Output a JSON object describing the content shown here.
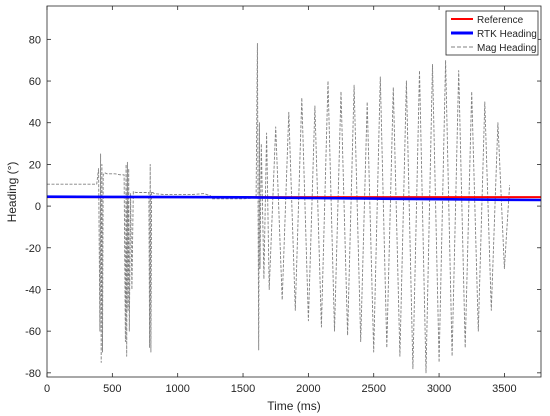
{
  "chart_data": {
    "type": "line",
    "title": "",
    "xlabel": "Time (ms)",
    "ylabel": "Heading (°)",
    "xlim": [
      0,
      3780
    ],
    "ylim": [
      -82,
      96
    ],
    "x_ticks": [
      0,
      500,
      1000,
      1500,
      2000,
      2500,
      3000,
      3500
    ],
    "y_ticks": [
      -80,
      -60,
      -40,
      -20,
      0,
      20,
      40,
      60,
      80
    ],
    "grid": false,
    "legend_position": "top-right",
    "series": [
      {
        "name": "Reference",
        "color": "#ff0000",
        "style": "solid",
        "x": [
          0,
          3780
        ],
        "y": [
          4.3,
          4.3
        ]
      },
      {
        "name": "RTK Heading",
        "color": "#0000ff",
        "style": "solid",
        "x": [
          0,
          500,
          1000,
          1500,
          2000,
          2500,
          3000,
          3500,
          3780
        ],
        "y": [
          4.5,
          4.4,
          4.3,
          4.2,
          3.9,
          3.6,
          3.3,
          3.0,
          2.9
        ]
      },
      {
        "name": "Mag Heading",
        "color": "#808080",
        "style": "dashed",
        "x": [
          0,
          380,
          395,
          405,
          410,
          415,
          420,
          425,
          430,
          440,
          460,
          480,
          520,
          560,
          590,
          600,
          605,
          610,
          615,
          620,
          625,
          630,
          640,
          650,
          660,
          680,
          700,
          760,
          780,
          785,
          790,
          795,
          800,
          805,
          810,
          820,
          900,
          1000,
          1100,
          1200,
          1250,
          1260,
          1300,
          1400,
          1500,
          1600,
          1610,
          1620,
          1625,
          1630,
          1640,
          1660,
          1680,
          1700,
          1750,
          1800,
          1850,
          1900,
          1950,
          2000,
          2050,
          2100,
          2150,
          2200,
          2250,
          2300,
          2350,
          2400,
          2450,
          2500,
          2550,
          2600,
          2650,
          2700,
          2750,
          2800,
          2850,
          2900,
          2950,
          3000,
          3050,
          3100,
          3150,
          3200,
          3250,
          3300,
          3350,
          3400,
          3450,
          3500,
          3540
        ],
        "y": [
          10.5,
          10.5,
          18,
          -60,
          25,
          -75,
          20,
          -70,
          15,
          16,
          15.5,
          15.5,
          15.5,
          15,
          15,
          -65,
          20,
          -72,
          21,
          -50,
          18,
          -60,
          6,
          -40,
          7,
          6.5,
          6.5,
          6.5,
          6.5,
          -68,
          20,
          -70,
          7,
          6.5,
          6.5,
          6,
          5.5,
          5.5,
          5.5,
          6,
          5,
          3.5,
          3.5,
          3.5,
          3.5,
          4,
          78,
          -69,
          40,
          -30,
          30,
          -35,
          35,
          -40,
          38,
          -45,
          45,
          -50,
          52,
          -55,
          48,
          -58,
          60,
          -60,
          55,
          -62,
          58,
          -65,
          50,
          -70,
          62,
          -68,
          57,
          -72,
          60,
          -78,
          65,
          -80,
          68,
          -75,
          70,
          -72,
          65,
          -68,
          55,
          -60,
          50,
          -50,
          40,
          -30,
          10
        ]
      }
    ]
  }
}
